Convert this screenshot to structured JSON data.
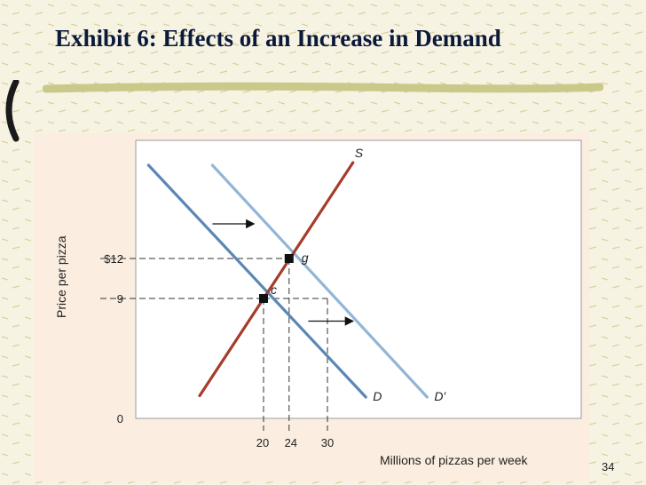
{
  "slide": {
    "title": "Exhibit 6:  Effects of an Increase in Demand",
    "page_number": "34",
    "colors": {
      "background": "#f7f3e3",
      "title": "#0c1a3a",
      "underline": "#c9c98a",
      "panel": "#fbeee0",
      "plot": "#ffffff"
    }
  },
  "chart_data": {
    "type": "line",
    "title": "",
    "xlabel": "Millions of pizzas per week",
    "ylabel": "Price per pizza",
    "xlim": [
      0,
      44
    ],
    "ylim": [
      0,
      22
    ],
    "x_ticks": [
      {
        "value": 20,
        "label": "20"
      },
      {
        "value": 24,
        "label": "24"
      },
      {
        "value": 30,
        "label": "30"
      }
    ],
    "y_ticks": [
      {
        "value": 12,
        "label": "$12"
      },
      {
        "value": 9,
        "label": "9"
      }
    ],
    "origin_label": "0",
    "series": [
      {
        "name": "D",
        "color": "#5b87b5",
        "points": [
          [
            2,
            19
          ],
          [
            36,
            1.6
          ]
        ]
      },
      {
        "name": "D'",
        "color": "#93b6d6",
        "points": [
          [
            12,
            19
          ],
          [
            45.6,
            1.6
          ]
        ]
      },
      {
        "name": "S",
        "color": "#a63c2a",
        "points": [
          [
            10,
            1.7
          ],
          [
            34,
            19.2
          ]
        ]
      }
    ],
    "equilibria": [
      {
        "label": "c",
        "x": 20,
        "y": 9
      },
      {
        "label": "g",
        "x": 24,
        "y": 12
      }
    ],
    "reference_point": {
      "x": 30,
      "y": 9
    },
    "shift_arrows": [
      {
        "from": [
          12,
          14.6
        ],
        "to": [
          18.5,
          14.6
        ]
      },
      {
        "from": [
          27,
          7.3
        ],
        "to": [
          34,
          7.3
        ]
      }
    ],
    "grid": false
  }
}
